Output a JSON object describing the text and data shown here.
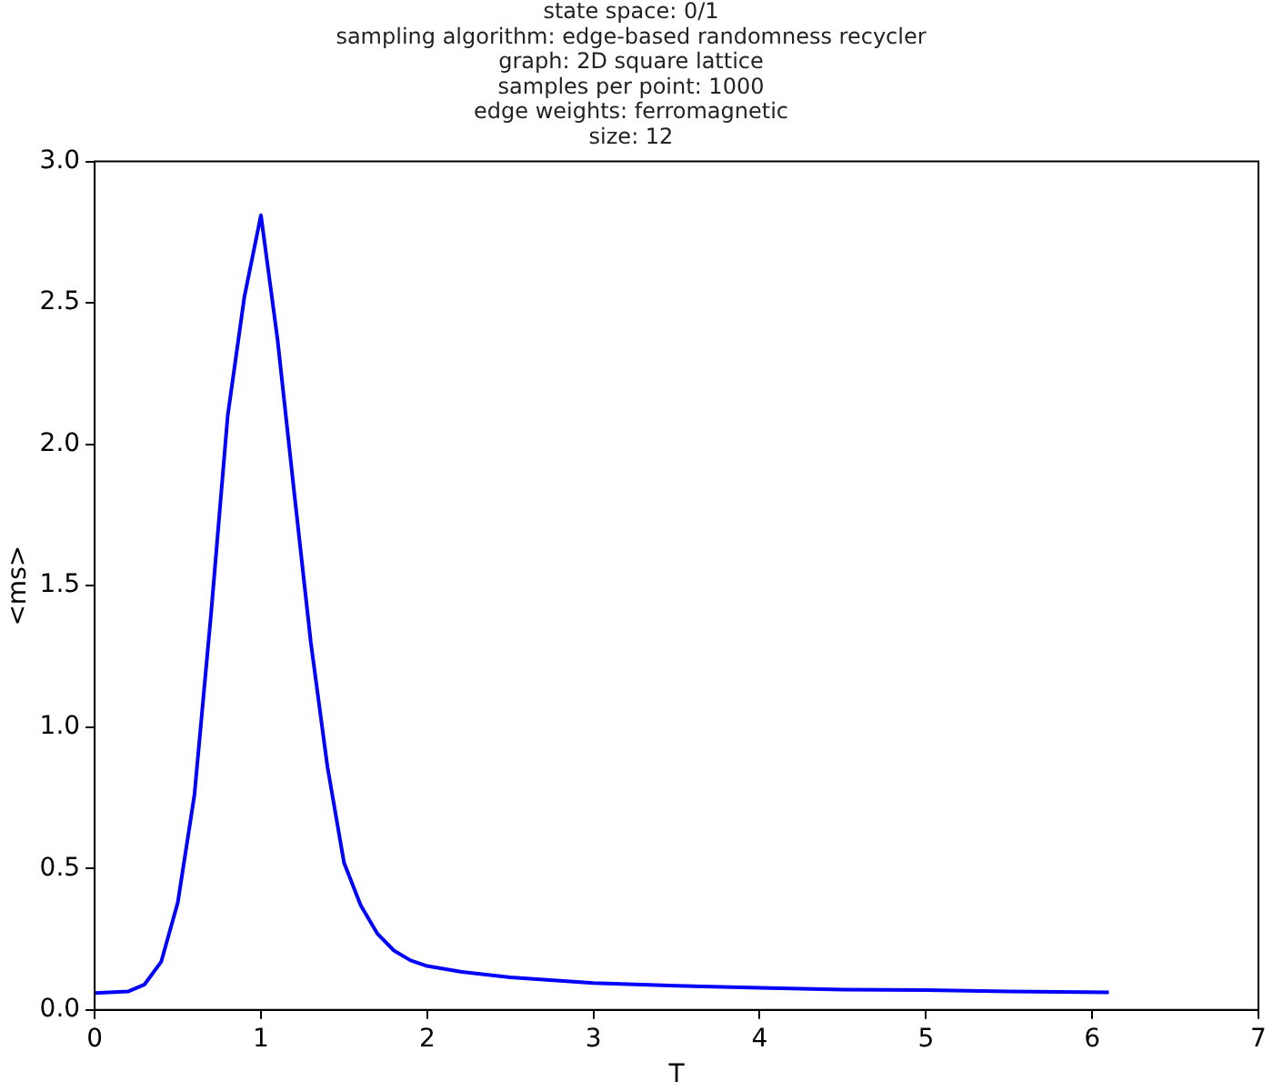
{
  "chart_data": {
    "type": "line",
    "title": "state space: 0/1\nsampling algorithm: edge-based randomness recycler\ngraph: 2D square lattice\nsamples per point: 1000\nedge weights: ferromagnetic\nsize: 12",
    "xlabel": "T",
    "ylabel": "<ms>",
    "x": [
      0,
      0.2,
      0.3,
      0.4,
      0.5,
      0.6,
      0.7,
      0.8,
      0.9,
      1.0,
      1.1,
      1.2,
      1.3,
      1.4,
      1.5,
      1.6,
      1.7,
      1.8,
      1.9,
      2.0,
      2.2,
      2.5,
      3.0,
      3.5,
      4.0,
      4.5,
      5.0,
      5.5,
      6.1
    ],
    "series": [
      {
        "color": "#0000ff",
        "values": [
          0.06,
          0.065,
          0.09,
          0.17,
          0.38,
          0.76,
          1.4,
          2.1,
          2.52,
          2.81,
          2.37,
          1.83,
          1.3,
          0.86,
          0.52,
          0.37,
          0.27,
          0.21,
          0.175,
          0.155,
          0.135,
          0.115,
          0.095,
          0.085,
          0.078,
          0.072,
          0.07,
          0.065,
          0.062
        ]
      }
    ],
    "xlim": [
      0,
      7
    ],
    "xticks": [
      0,
      1,
      2,
      3,
      4,
      5,
      6,
      7
    ],
    "ylim": [
      0,
      3
    ],
    "yticks": [
      {
        "value": 0,
        "label": "0.0"
      },
      {
        "value": 0.5,
        "label": "0.5"
      },
      {
        "value": 1,
        "label": "1.0"
      },
      {
        "value": 1.5,
        "label": "1.5"
      },
      {
        "value": 2,
        "label": "2.0"
      },
      {
        "value": 2.5,
        "label": "2.5"
      },
      {
        "value": 3,
        "label": "3.0"
      }
    ],
    "grid": false,
    "legend": false,
    "marker": "none",
    "line_style": "solid"
  }
}
